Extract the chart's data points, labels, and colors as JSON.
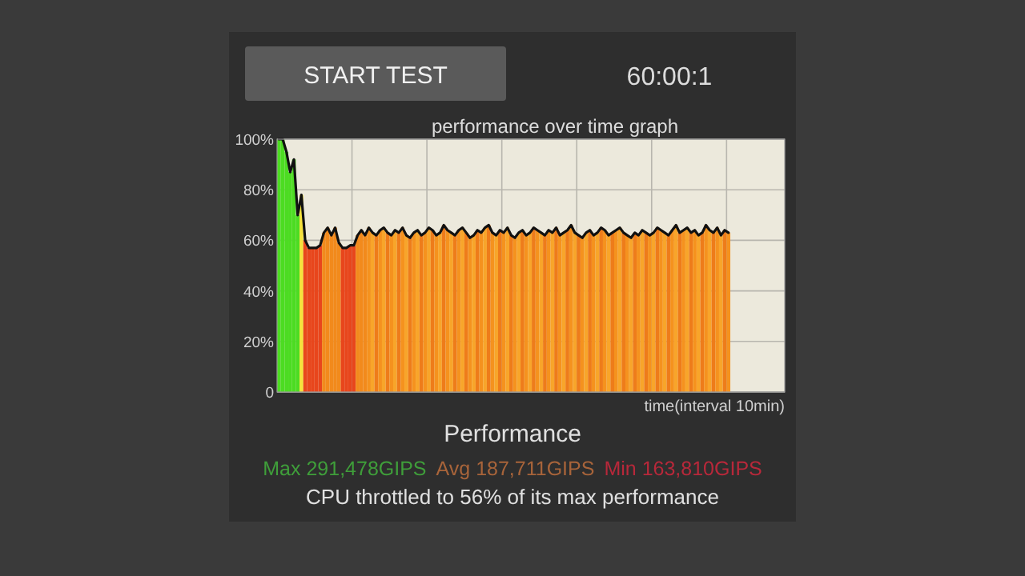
{
  "chart_data": {
    "type": "bar",
    "title": "performance over time graph",
    "xlabel": "time(interval 10min)",
    "annotations": [
      "START TEST",
      "60:00:1",
      "Performance",
      "Max 291,478GIPS",
      "Avg 187,711GIPS",
      "Min 163,810GIPS",
      "CPU throttled to 56% of its max performance"
    ],
    "categories": [
      null,
      null,
      null,
      null,
      null,
      null,
      null,
      null,
      null,
      null,
      null,
      null,
      null,
      null,
      null,
      null,
      null,
      null,
      null,
      null,
      null,
      null,
      null,
      null,
      null,
      null,
      null,
      null,
      null,
      null,
      null,
      null,
      null,
      null,
      null,
      null,
      null,
      null,
      null,
      null,
      null,
      null,
      null,
      null,
      null,
      null,
      null,
      null,
      null,
      null,
      null,
      null,
      null,
      null,
      null,
      null,
      null,
      null,
      null,
      null,
      null,
      null,
      null,
      null,
      null,
      null,
      null,
      null,
      null,
      null,
      null,
      null,
      null,
      null,
      null,
      null,
      null,
      null,
      null,
      null,
      null,
      null,
      null,
      null,
      null,
      null,
      null,
      null,
      null,
      null,
      null,
      null,
      null,
      null,
      null,
      null,
      null,
      null,
      null,
      null,
      null,
      null,
      null,
      null,
      null,
      null,
      null,
      null,
      null,
      null,
      null,
      null,
      null,
      null,
      null,
      null,
      null,
      null,
      null,
      null,
      null
    ],
    "ylim": [
      0,
      100
    ],
    "yticks": [
      {
        "value": 0,
        "label": "0"
      },
      {
        "value": 20,
        "label": "20%"
      },
      {
        "value": 40,
        "label": "40%"
      },
      {
        "value": 60,
        "label": "60%"
      },
      {
        "value": 80,
        "label": "80%"
      },
      {
        "value": 100,
        "label": "100%"
      }
    ],
    "grid": true,
    "series": [
      {
        "values": [
          100,
          100,
          95,
          87,
          92,
          70,
          78,
          60,
          57,
          57,
          57,
          58,
          63,
          65,
          62,
          65,
          59,
          57,
          57,
          58,
          58,
          62,
          64,
          62,
          65,
          63,
          62,
          64,
          65,
          63,
          62,
          64,
          63,
          65,
          62,
          61,
          63,
          64,
          62,
          63,
          65,
          64,
          62,
          63,
          66,
          64,
          63,
          62,
          64,
          65,
          63,
          61,
          62,
          64,
          63,
          65,
          66,
          63,
          62,
          64,
          63,
          65,
          62,
          61,
          63,
          64,
          62,
          63,
          65,
          64,
          63,
          62,
          64,
          63,
          65,
          62,
          63,
          64,
          66,
          63,
          62,
          61,
          63,
          64,
          62,
          63,
          65,
          64,
          62,
          63,
          64,
          65,
          63,
          62,
          61,
          63,
          62,
          64,
          63,
          62,
          63,
          65,
          64,
          63,
          62,
          64,
          66,
          63,
          64,
          65,
          63,
          64,
          62,
          63,
          66,
          64,
          63,
          65,
          62,
          64,
          63
        ],
        "colors": [
          "#4cdc22",
          "#4cdc22",
          "#4cdc22",
          "#4cdc22",
          "#4cdc22",
          "#4cdc22",
          "#f5e23c",
          "#e8461c",
          "#e8461c",
          "#e8461c",
          "#e8461c",
          "#e8461c",
          "#f28a1c",
          "#f28a1c",
          "#f28a1c",
          "#f28a1c",
          "#f28a1c",
          "#e8461c",
          "#e8461c",
          "#e8461c",
          "#e8461c",
          "#f28a1c",
          "#f28a1c",
          "#f28a1c",
          "#f5921e",
          "#f8a52a",
          "#ee7c1a",
          "#f5921e",
          "#f8a52a",
          "#ee7c1a",
          "#f5921e",
          "#f8a52a",
          "#ee7c1a",
          "#f5921e",
          "#f8a52a",
          "#ee7c1a",
          "#f5921e",
          "#f8a52a",
          "#ee7c1a",
          "#f5921e",
          "#f8a52a",
          "#ee7c1a",
          "#f5921e",
          "#f8a52a",
          "#ee7c1a",
          "#f5921e",
          "#f8a52a",
          "#ee7c1a",
          "#f5921e",
          "#f8a52a",
          "#ee7c1a",
          "#f5921e",
          "#f8a52a",
          "#ee7c1a",
          "#f5921e",
          "#f8a52a",
          "#ee7c1a",
          "#f5921e",
          "#f8a52a",
          "#ee7c1a",
          "#f5921e",
          "#f8a52a",
          "#ee7c1a",
          "#f5921e",
          "#f8a52a",
          "#ee7c1a",
          "#f5921e",
          "#f8a52a",
          "#ee7c1a",
          "#f5921e",
          "#f8a52a",
          "#ee7c1a",
          "#f5921e",
          "#f8a52a",
          "#ee7c1a",
          "#f5921e",
          "#f8a52a",
          "#ee7c1a",
          "#f5921e",
          "#f8a52a",
          "#ee7c1a",
          "#f5921e",
          "#f8a52a",
          "#ee7c1a",
          "#f5921e",
          "#f8a52a",
          "#ee7c1a",
          "#f5921e",
          "#f8a52a",
          "#ee7c1a",
          "#f5921e",
          "#f8a52a",
          "#ee7c1a",
          "#f5921e",
          "#f8a52a",
          "#ee7c1a",
          "#f5921e",
          "#f8a52a",
          "#ee7c1a",
          "#f5921e",
          "#f8a52a",
          "#ee7c1a",
          "#f5921e",
          "#f8a52a",
          "#ee7c1a",
          "#f5921e",
          "#f8a52a",
          "#ee7c1a",
          "#f5921e",
          "#f8a52a",
          "#ee7c1a",
          "#f5921e",
          "#f8a52a",
          "#ee7c1a",
          "#f5921e",
          "#f8a52a",
          "#ee7c1a",
          "#f5921e",
          "#f8a52a",
          "#ee7c1a",
          "#f5921e"
        ]
      },
      {
        "type": "line",
        "color": "#111111",
        "values": [
          100,
          100,
          95,
          87,
          92,
          70,
          78,
          60,
          57,
          57,
          57,
          58,
          63,
          65,
          62,
          65,
          59,
          57,
          57,
          58,
          58,
          62,
          64,
          62,
          65,
          63,
          62,
          64,
          65,
          63,
          62,
          64,
          63,
          65,
          62,
          61,
          63,
          64,
          62,
          63,
          65,
          64,
          62,
          63,
          66,
          64,
          63,
          62,
          64,
          65,
          63,
          61,
          62,
          64,
          63,
          65,
          66,
          63,
          62,
          64,
          63,
          65,
          62,
          61,
          63,
          64,
          62,
          63,
          65,
          64,
          63,
          62,
          64,
          63,
          65,
          62,
          63,
          64,
          66,
          63,
          62,
          61,
          63,
          64,
          62,
          63,
          65,
          64,
          62,
          63,
          64,
          65,
          63,
          62,
          61,
          63,
          62,
          64,
          63,
          62,
          63,
          65,
          64,
          63,
          62,
          64,
          66,
          63,
          64,
          65,
          63,
          64,
          62,
          63,
          66,
          64,
          63,
          65,
          62,
          64,
          63
        ]
      }
    ]
  }
}
